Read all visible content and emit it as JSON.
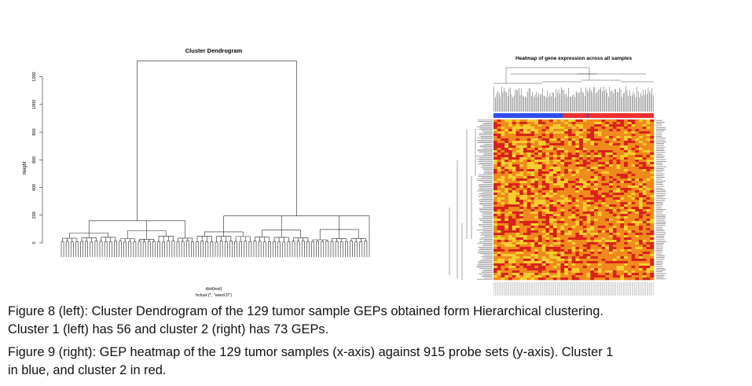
{
  "chart_data": [
    {
      "type": "dendrogram",
      "title": "Cluster Dendrogram",
      "ylabel": "Height",
      "xlabel": "dist(test)",
      "sublabel": "hclust (*, \"ward.D\")",
      "ylim": [
        0,
        1300
      ],
      "yticks": [
        0,
        200,
        400,
        600,
        800,
        1000,
        1200
      ],
      "clusters": [
        {
          "name": "Cluster 1",
          "leaves": 56,
          "merge_height": 160
        },
        {
          "name": "Cluster 2",
          "leaves": 73,
          "merge_height": 195
        }
      ],
      "root_height": 1315
    },
    {
      "type": "heatmap",
      "title": "Heatmap of gene expression across all samples",
      "n_samples": 129,
      "n_probe_sets": 915,
      "cluster_bar": [
        {
          "cluster": "Cluster 1",
          "color": "#2f4fe8",
          "count": 56
        },
        {
          "cluster": "Cluster 2",
          "color": "#ee2f2f",
          "count": 73
        }
      ],
      "colors": {
        "low": "#f6ce2f",
        "mid": "#f08a1c",
        "high": "#d8231a"
      }
    }
  ],
  "captions": {
    "fig8_line1": "Figure 8 (left): Cluster Dendrogram of the 129 tumor sample GEPs obtained form Hierarchical clustering.",
    "fig8_line2": "Cluster 1 (left) has 56 and cluster 2 (right) has 73 GEPs.",
    "fig9_line1": "Figure 9 (right): GEP heatmap of the 129 tumor samples (x-axis) against 915 probe sets (y-axis). Cluster 1",
    "fig9_line2": "in blue, and cluster 2 in red."
  }
}
